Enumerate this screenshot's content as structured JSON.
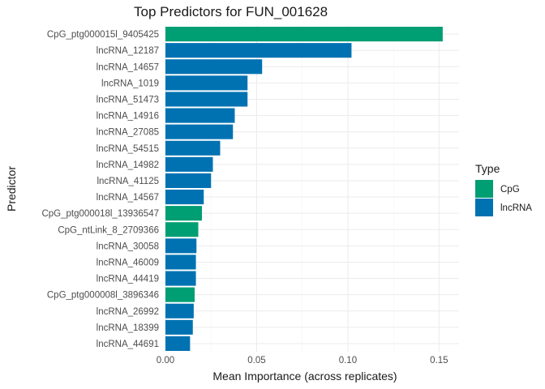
{
  "chart_data": {
    "type": "bar",
    "orientation": "horizontal",
    "title": "Top Predictors for FUN_001628",
    "xlabel": "Mean Importance (across replicates)",
    "ylabel": "Predictor",
    "xlim": [
      0,
      0.1575
    ],
    "x_ticks": [
      0.0,
      0.05,
      0.1,
      0.15
    ],
    "x_tick_labels": [
      "0.00",
      "0.05",
      "0.10",
      "0.15"
    ],
    "grid": true,
    "legend": {
      "title": "Type",
      "position": "right",
      "entries": [
        {
          "label": "CpG",
          "color": "#009E73"
        },
        {
          "label": "lncRNA",
          "color": "#0072B2"
        }
      ]
    },
    "categories": [
      "CpG_ptg000015l_9405425",
      "lncRNA_12187",
      "lncRNA_14657",
      "lncRNA_1019",
      "lncRNA_51473",
      "lncRNA_14916",
      "lncRNA_27085",
      "lncRNA_54515",
      "lncRNA_14982",
      "lncRNA_41125",
      "lncRNA_14567",
      "CpG_ptg000018l_13936547",
      "CpG_ntLink_8_2709366",
      "lncRNA_30058",
      "lncRNA_46009",
      "lncRNA_44419",
      "CpG_ptg000008l_3896346",
      "lncRNA_26992",
      "lncRNA_18399",
      "lncRNA_44691"
    ],
    "values": [
      0.152,
      0.102,
      0.053,
      0.045,
      0.045,
      0.038,
      0.037,
      0.03,
      0.026,
      0.025,
      0.021,
      0.02,
      0.018,
      0.017,
      0.0167,
      0.0167,
      0.016,
      0.0155,
      0.015,
      0.0135
    ],
    "types": [
      "CpG",
      "lncRNA",
      "lncRNA",
      "lncRNA",
      "lncRNA",
      "lncRNA",
      "lncRNA",
      "lncRNA",
      "lncRNA",
      "lncRNA",
      "lncRNA",
      "CpG",
      "CpG",
      "lncRNA",
      "lncRNA",
      "lncRNA",
      "CpG",
      "lncRNA",
      "lncRNA",
      "lncRNA"
    ]
  }
}
